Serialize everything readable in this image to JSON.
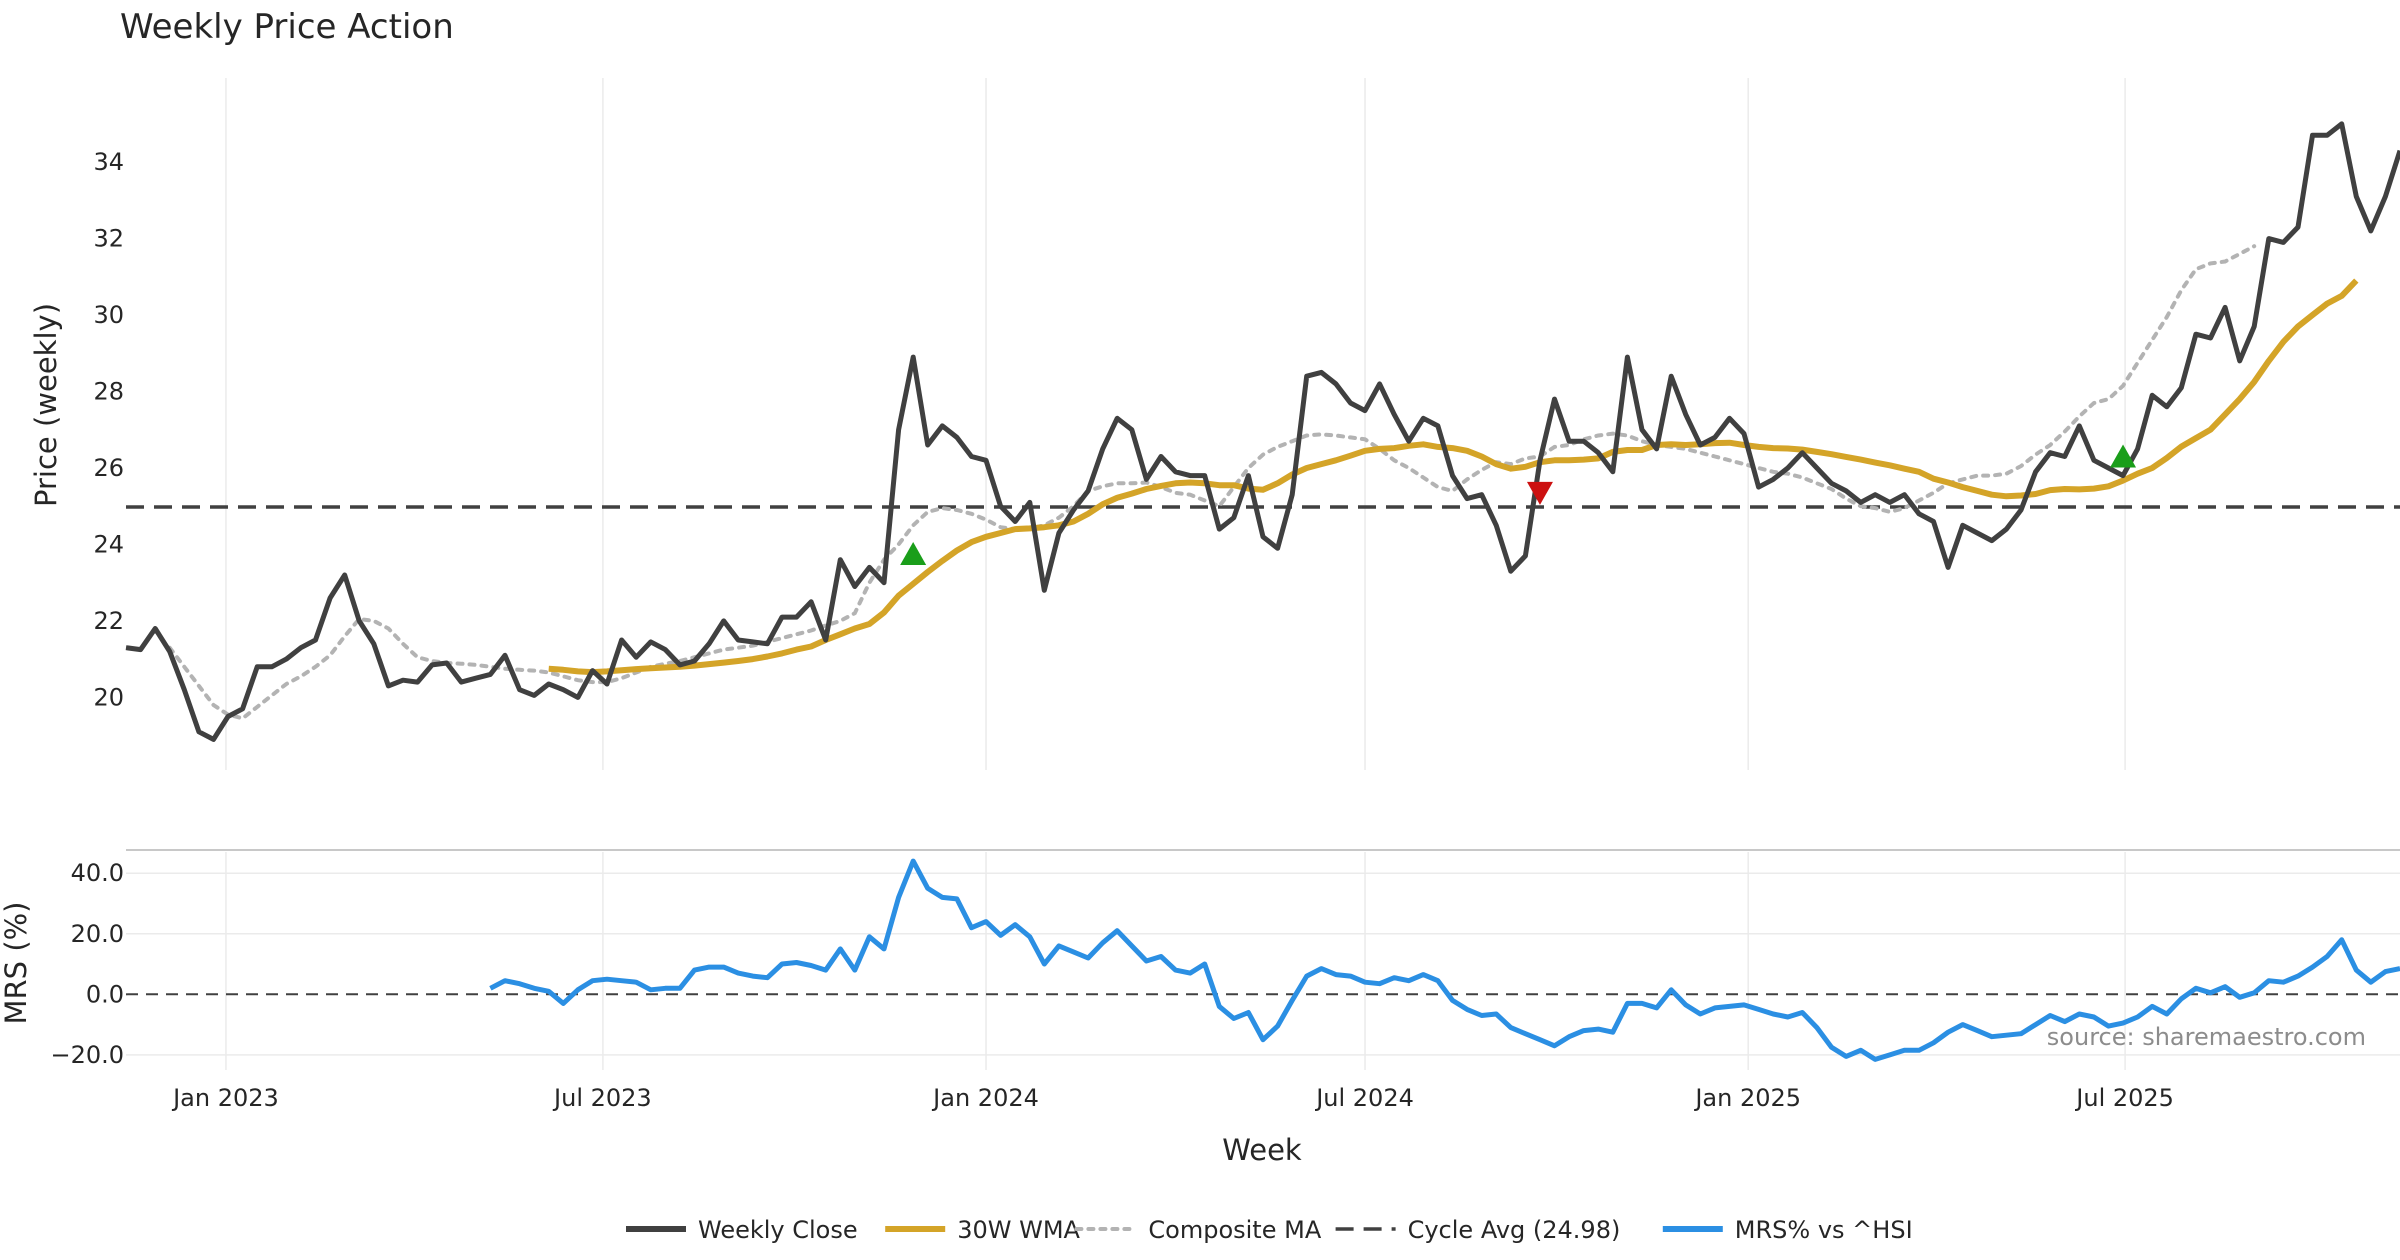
{
  "chart_data": {
    "type": "line",
    "title": "Weekly Price Action",
    "xlabel": "Week",
    "source": "source: sharemaestro.com",
    "x_start": "2022-11-14",
    "x_end": "2025-11-10",
    "x_ticks": [
      {
        "date": "2023-01-01",
        "label": "Jan 2023"
      },
      {
        "date": "2023-07-01",
        "label": "Jul 2023"
      },
      {
        "date": "2024-01-01",
        "label": "Jan 2024"
      },
      {
        "date": "2024-07-01",
        "label": "Jul 2024"
      },
      {
        "date": "2025-01-01",
        "label": "Jan 2025"
      },
      {
        "date": "2025-07-01",
        "label": "Jul 2025"
      }
    ],
    "price_panel": {
      "ylabel": "Price (weekly)",
      "ylim": [
        18.1,
        36.2
      ],
      "yticks": [
        20,
        22,
        24,
        26,
        28,
        30,
        32,
        34
      ],
      "cycle_avg": 24.98,
      "series": {
        "weekly_close": {
          "name": "Weekly Close",
          "color": "#404040",
          "values": [
            21.3,
            21.25,
            21.8,
            21.2,
            20.2,
            19.1,
            18.9,
            19.5,
            19.7,
            20.8,
            20.8,
            21.0,
            21.3,
            21.5,
            22.6,
            23.2,
            22.0,
            21.4,
            20.3,
            20.45,
            20.4,
            20.85,
            20.9,
            20.4,
            20.5,
            20.6,
            21.1,
            20.2,
            20.05,
            20.35,
            20.2,
            20.0,
            20.7,
            20.35,
            21.5,
            21.05,
            21.45,
            21.25,
            20.85,
            20.95,
            21.4,
            22.0,
            21.5,
            21.45,
            21.4,
            22.1,
            22.1,
            22.5,
            21.5,
            23.6,
            22.9,
            23.4,
            23.0,
            27.0,
            28.9,
            26.6,
            27.1,
            26.8,
            26.3,
            26.2,
            25.0,
            24.6,
            25.1,
            22.8,
            24.3,
            24.9,
            25.4,
            26.5,
            27.3,
            27.0,
            25.7,
            26.3,
            25.9,
            25.8,
            25.8,
            24.4,
            24.7,
            25.8,
            24.2,
            23.9,
            25.3,
            28.4,
            28.5,
            28.2,
            27.7,
            27.5,
            28.2,
            27.4,
            26.7,
            27.3,
            27.1,
            25.8,
            25.2,
            25.3,
            24.5,
            23.3,
            23.7,
            26.2,
            27.8,
            26.7,
            26.7,
            26.4,
            25.9,
            28.9,
            27.0,
            26.5,
            28.4,
            27.4,
            26.6,
            26.8,
            27.3,
            26.9,
            25.5,
            25.7,
            26.0,
            26.4,
            26.0,
            25.6,
            25.4,
            25.1,
            25.3,
            25.1,
            25.3,
            24.8,
            24.6,
            23.4,
            24.5,
            24.3,
            24.1,
            24.4,
            24.9,
            25.9,
            26.4,
            26.3,
            27.1,
            26.2,
            26.0,
            25.8,
            26.5,
            27.9,
            27.6,
            28.1,
            29.5,
            29.4,
            30.2,
            28.8,
            29.7,
            32.0,
            31.9,
            32.3,
            34.7,
            34.7,
            35.0,
            33.1,
            32.2,
            33.1,
            34.3
          ]
        },
        "wma_30w": {
          "name": "30W WMA",
          "color": "#d4a428",
          "start_index": 29,
          "values": [
            20.75,
            20.72,
            20.68,
            20.66,
            20.68,
            20.71,
            20.74,
            20.76,
            20.78,
            20.8,
            20.83,
            20.87,
            20.91,
            20.95,
            21.0,
            21.07,
            21.15,
            21.25,
            21.33,
            21.5,
            21.65,
            21.8,
            21.92,
            22.22,
            22.66,
            22.97,
            23.28,
            23.57,
            23.84,
            24.06,
            24.2,
            24.3,
            24.4,
            24.42,
            24.45,
            24.5,
            24.6,
            24.8,
            25.05,
            25.22,
            25.33,
            25.45,
            25.53,
            25.6,
            25.62,
            25.6,
            25.55,
            25.55,
            25.46,
            25.43,
            25.6,
            25.83,
            26.0,
            26.1,
            26.2,
            26.32,
            26.45,
            26.5,
            26.52,
            26.58,
            26.62,
            26.55,
            26.52,
            26.45,
            26.3,
            26.1,
            25.98,
            26.03,
            26.15,
            26.2,
            26.2,
            26.22,
            26.25,
            26.42,
            26.47,
            26.47,
            26.6,
            26.62,
            26.6,
            26.62,
            26.65,
            26.66,
            26.6,
            26.55,
            26.52,
            26.51,
            26.48,
            26.42,
            26.36,
            26.29,
            26.22,
            26.14,
            26.07,
            25.98,
            25.9,
            25.72,
            25.62,
            25.5,
            25.4,
            25.3,
            25.26,
            25.28,
            25.32,
            25.42,
            25.45,
            25.44,
            25.46,
            25.52,
            25.67,
            25.85,
            26.0,
            26.26,
            26.56,
            26.78,
            27.0,
            27.4,
            27.8,
            28.25,
            28.8,
            29.3,
            29.7,
            30.0,
            30.3,
            30.5,
            30.9
          ]
        },
        "composite_ma": {
          "name": "Composite MA",
          "color": "#b3b3b3",
          "start_index": 3,
          "values": [
            21.3,
            20.8,
            20.3,
            19.8,
            19.55,
            19.45,
            19.75,
            20.05,
            20.35,
            20.55,
            20.8,
            21.1,
            21.6,
            22.05,
            22.0,
            21.8,
            21.4,
            21.05,
            20.95,
            20.9,
            20.88,
            20.85,
            20.8,
            20.75,
            20.72,
            20.7,
            20.65,
            20.55,
            20.45,
            20.4,
            20.4,
            20.5,
            20.65,
            20.8,
            20.88,
            20.95,
            21.05,
            21.15,
            21.25,
            21.3,
            21.35,
            21.45,
            21.55,
            21.65,
            21.75,
            21.88,
            22.0,
            22.2,
            23.0,
            23.6,
            24.0,
            24.5,
            24.85,
            24.95,
            24.9,
            24.8,
            24.65,
            24.45,
            24.4,
            24.42,
            24.5,
            24.7,
            25.0,
            25.4,
            25.52,
            25.6,
            25.6,
            25.62,
            25.5,
            25.35,
            25.3,
            25.15,
            25.0,
            25.5,
            26.0,
            26.35,
            26.55,
            26.7,
            26.85,
            26.88,
            26.85,
            26.8,
            26.75,
            26.5,
            26.2,
            26.0,
            25.75,
            25.5,
            25.4,
            25.7,
            25.95,
            26.15,
            26.1,
            26.25,
            26.3,
            26.55,
            26.6,
            26.75,
            26.85,
            26.9,
            26.85,
            26.7,
            26.6,
            26.55,
            26.5,
            26.4,
            26.3,
            26.2,
            26.1,
            26.0,
            25.9,
            25.85,
            25.75,
            25.6,
            25.45,
            25.2,
            25.0,
            24.95,
            24.85,
            24.95,
            25.15,
            25.35,
            25.6,
            25.7,
            25.8,
            25.8,
            25.85,
            26.05,
            26.35,
            26.6,
            26.95,
            27.35,
            27.7,
            27.8,
            28.15,
            28.75,
            29.35,
            29.95,
            30.65,
            31.2,
            31.35,
            31.4,
            31.6,
            31.8
          ]
        }
      },
      "signals": [
        {
          "type": "buy",
          "index": 54,
          "value": 23.75,
          "color": "#1a9e1a"
        },
        {
          "type": "sell",
          "index": 97,
          "value": 25.35,
          "color": "#cc1111"
        },
        {
          "type": "buy",
          "index": 137,
          "value": 26.3,
          "color": "#1a9e1a"
        }
      ]
    },
    "mrs_panel": {
      "ylabel": "MRS (%)",
      "ylim": [
        -25,
        47
      ],
      "yticks": [
        {
          "value": 40,
          "label": "40.0"
        },
        {
          "value": 20,
          "label": "20.0"
        },
        {
          "value": 0,
          "label": "0.0"
        },
        {
          "value": -20,
          "label": "−20.0"
        }
      ],
      "zero_line": 0,
      "series": {
        "mrs": {
          "name": "MRS% vs ^HSI",
          "color": "#2b8fe3",
          "start_index": 25,
          "values": [
            2.0,
            4.5,
            3.5,
            2.0,
            1.0,
            -3.0,
            1.5,
            4.5,
            5.0,
            4.5,
            4.0,
            1.5,
            2.0,
            2.0,
            8.0,
            9.0,
            9.0,
            7.0,
            6.0,
            5.5,
            10.0,
            10.5,
            9.5,
            8.0,
            15.0,
            8.0,
            19.0,
            15.0,
            32.0,
            44.0,
            35.0,
            32.0,
            31.5,
            22.0,
            24.0,
            19.5,
            23.0,
            19.0,
            10.0,
            16.0,
            14.0,
            12.0,
            17.0,
            21.0,
            16.0,
            11.0,
            12.5,
            8.0,
            7.0,
            10.0,
            -4.0,
            -8.0,
            -6.0,
            -15.0,
            -10.5,
            -2.0,
            6.0,
            8.5,
            6.5,
            6.0,
            4.0,
            3.5,
            5.5,
            4.5,
            6.5,
            4.5,
            -2.0,
            -5.0,
            -7.0,
            -6.5,
            -11.0,
            -13.0,
            -15.0,
            -17.0,
            -14.0,
            -12.0,
            -11.5,
            -12.5,
            -3.0,
            -3.0,
            -4.5,
            1.5,
            -3.5,
            -6.5,
            -4.5,
            -4.0,
            -3.5,
            -5.0,
            -6.5,
            -7.5,
            -6.0,
            -11.0,
            -17.5,
            -20.5,
            -18.5,
            -21.5,
            -20.0,
            -18.5,
            -18.5,
            -16.0,
            -12.5,
            -10.0,
            -12.0,
            -14.0,
            -13.5,
            -13.0,
            -10.0,
            -7.0,
            -9.0,
            -6.5,
            -7.5,
            -10.5,
            -9.5,
            -7.5,
            -4.0,
            -6.5,
            -1.5,
            2.0,
            0.5,
            2.5,
            -1.0,
            0.5,
            4.5,
            4.0,
            6.0,
            9.0,
            12.5,
            18.0,
            8.0,
            4.0,
            7.5,
            8.5
          ]
        }
      }
    },
    "legend": [
      {
        "label": "Weekly Close",
        "style": "solid",
        "color": "#404040"
      },
      {
        "label": "30W WMA",
        "style": "solid",
        "color": "#d4a428"
      },
      {
        "label": "Composite MA",
        "style": "dotted",
        "color": "#b3b3b3"
      },
      {
        "label": "Cycle Avg (24.98)",
        "style": "dashed",
        "color": "#404040"
      },
      {
        "label": "MRS% vs ^HSI",
        "style": "solid",
        "color": "#2b8fe3"
      }
    ]
  }
}
